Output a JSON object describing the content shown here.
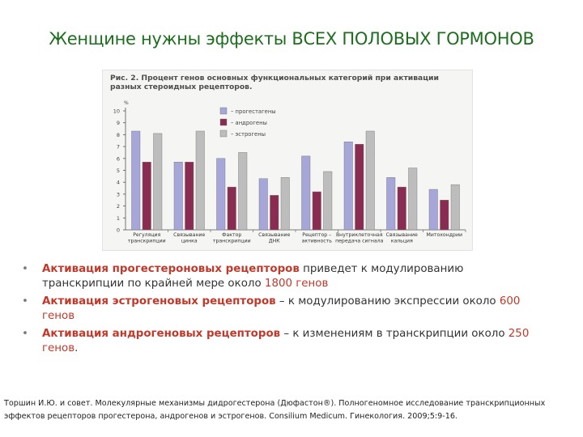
{
  "slide": {
    "title": "Женщине нужны эффекты ВСЕХ ПОЛОВЫХ ГОРМОНОВ"
  },
  "figure": {
    "caption": "Рис. 2. Процент генов основных функциональных категорий при активации разных стероидных рецепторов."
  },
  "colors": {
    "progestogens": "#a6a6d9",
    "androgens": "#8a2c52",
    "estrogens": "#bdbdbd",
    "accent_red": "#c0392b",
    "title_green": "#1f6e1f"
  },
  "chart_data": {
    "type": "bar",
    "title": "",
    "ylabel": "%",
    "xlabel": "",
    "ylim": [
      0,
      10
    ],
    "yticks": [
      "0",
      "1",
      "2",
      "3",
      "4",
      "5",
      "6",
      "7",
      "8",
      "9",
      "10"
    ],
    "grid": false,
    "legend_position": "top-left",
    "categories": [
      [
        "Регуляция",
        "транскрипции"
      ],
      [
        "Связывание",
        "цинка"
      ],
      [
        "Фактор",
        "транскрипции"
      ],
      [
        "Связывание",
        "ДНК"
      ],
      [
        "Рецептор –",
        "активность"
      ],
      [
        "Внутриклеточная",
        "передача сигнала"
      ],
      [
        "Связывание",
        "кальция"
      ],
      [
        "Митохондрии"
      ]
    ],
    "series": [
      {
        "name": "прогестагены",
        "values": [
          8.3,
          5.7,
          6.0,
          4.3,
          6.2,
          7.4,
          4.4,
          3.4
        ]
      },
      {
        "name": "андрогены",
        "values": [
          5.7,
          5.7,
          3.6,
          2.9,
          3.2,
          7.2,
          3.6,
          2.5
        ]
      },
      {
        "name": "эстрогены",
        "values": [
          8.1,
          8.3,
          6.5,
          4.4,
          4.9,
          8.3,
          5.2,
          3.8
        ]
      }
    ]
  },
  "bullets": [
    {
      "lead": "Активация прогестероновых рецепторов",
      "text": " приведет к модулированию транскрипции по крайней мере около ",
      "number": "1800 генов",
      "tail": ""
    },
    {
      "lead": "Активация эстрогеновых рецепторов",
      "text": " – к  модулированию экспрессии около ",
      "number": "600 генов",
      "tail": ""
    },
    {
      "lead": "Активация андрогеновых рецепторов",
      "text": " – к изменениям в транскрипции около ",
      "number": "250 генов",
      "tail": "."
    }
  ],
  "reference": {
    "line1": "Торшин И.Ю. и совет. Молекулярные механизмы дидрогестерона  (Дюфастон®). Полногеномное исследование  транскрипционных",
    "line2": "эффектов рецепторов  прогестерона, андрогенов и эстрогенов.  Consilium Medicum. Гинекология.  2009;5:9-16."
  }
}
